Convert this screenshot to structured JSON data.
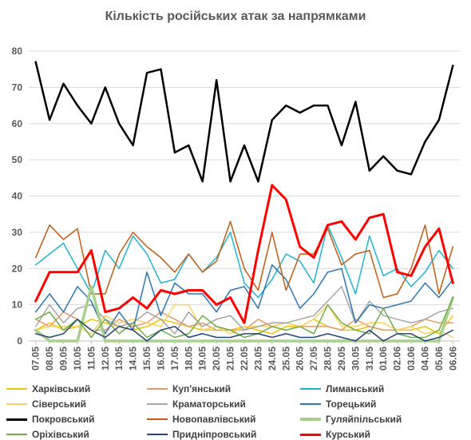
{
  "chart_data": {
    "type": "line",
    "title": "Кількість російських атак за напрямками",
    "xlabel": "",
    "ylabel": "",
    "ylim": [
      0,
      80
    ],
    "yticks": [
      0,
      10,
      20,
      30,
      40,
      50,
      60,
      70,
      80
    ],
    "grid": true,
    "legend_position": "bottom",
    "categories": [
      "07.05",
      "08.05",
      "09.05",
      "10.05",
      "11.05",
      "12.05",
      "13.05",
      "14.05",
      "15.05",
      "16.05",
      "17.05",
      "18.05",
      "19.05",
      "20.05",
      "21.05",
      "22.05",
      "23.05",
      "24.05",
      "25.05",
      "26.05",
      "27.05",
      "28.05",
      "29.05",
      "30.05",
      "31.05",
      "01.06",
      "02.06",
      "03.06",
      "04.06",
      "05.06",
      "06.06"
    ],
    "series": [
      {
        "name": "Харківський",
        "color": "#f2c300",
        "width": 1.5,
        "values": [
          3,
          5,
          3,
          4,
          6,
          5,
          4,
          3,
          4,
          6,
          5,
          4,
          3,
          3,
          3,
          4,
          3,
          2,
          4,
          4,
          6,
          4,
          3,
          3,
          4,
          3,
          3,
          3,
          4,
          2,
          7
        ]
      },
      {
        "name": "Куп'янський",
        "color": "#e59a68",
        "width": 1.5,
        "values": [
          6,
          4,
          8,
          6,
          3,
          3,
          6,
          4,
          5,
          8,
          6,
          4,
          5,
          3,
          3,
          3,
          6,
          4,
          5,
          4,
          4,
          4,
          3,
          6,
          4,
          3,
          3,
          4,
          6,
          5,
          5
        ]
      },
      {
        "name": "Лиманський",
        "color": "#1fb4d4",
        "width": 1.5,
        "values": [
          21,
          24,
          27,
          20,
          13,
          25,
          20,
          29,
          24,
          16,
          17,
          24,
          19,
          23,
          30,
          16,
          12,
          17,
          24,
          22,
          16,
          32,
          23,
          13,
          29,
          18,
          20,
          15,
          19,
          25,
          20
        ]
      },
      {
        "name": "Сіверський",
        "color": "#fbd25e",
        "width": 1.5,
        "values": [
          3,
          4,
          4,
          4,
          2,
          7,
          5,
          6,
          5,
          4,
          10,
          10,
          3,
          4,
          2,
          4,
          4,
          4,
          5,
          4,
          6,
          10,
          4,
          4,
          5,
          5,
          3,
          4,
          2,
          3,
          1
        ]
      },
      {
        "name": "Краматорський",
        "color": "#a5a5a5",
        "width": 1.5,
        "values": [
          4,
          10,
          5,
          9,
          10,
          6,
          4,
          5,
          8,
          6,
          2,
          8,
          4,
          6,
          7,
          3,
          4,
          5,
          5,
          6,
          7,
          11,
          15,
          5,
          11,
          7,
          6,
          5,
          6,
          8,
          9
        ]
      },
      {
        "name": "Торецький",
        "color": "#2e75b6",
        "width": 1.5,
        "values": [
          8,
          13,
          8,
          15,
          11,
          2,
          8,
          3,
          19,
          7,
          16,
          13,
          13,
          8,
          14,
          15,
          9,
          21,
          17,
          9,
          13,
          19,
          20,
          5,
          10,
          9,
          10,
          11,
          16,
          12,
          17
        ]
      },
      {
        "name": "Покровський",
        "color": "#000000",
        "width": 2.5,
        "values": [
          77,
          61,
          71,
          65,
          60,
          70,
          60,
          54,
          74,
          75,
          52,
          54,
          44,
          72,
          44,
          54,
          44,
          61,
          65,
          63,
          65,
          65,
          54,
          66,
          47,
          51,
          47,
          46,
          55,
          61,
          76
        ]
      },
      {
        "name": "Новопавлівський",
        "color": "#c55a11",
        "width": 1.5,
        "values": [
          23,
          32,
          28,
          31,
          13,
          13,
          24,
          30,
          26,
          23,
          19,
          24,
          19,
          22,
          33,
          20,
          14,
          30,
          14,
          24,
          24,
          31,
          21,
          24,
          25,
          12,
          13,
          20,
          32,
          13,
          26
        ]
      },
      {
        "name": "Гуляйпільський",
        "color": "#a9d18e",
        "width": 3.5,
        "values": [
          3,
          0,
          0,
          0,
          15,
          0,
          0,
          0,
          0,
          0,
          0,
          0,
          0,
          0,
          0,
          0,
          0,
          0,
          0,
          0,
          0,
          0,
          0,
          0,
          0,
          0,
          0,
          0,
          0,
          0,
          12
        ]
      },
      {
        "name": "Оріхівський",
        "color": "#70ad47",
        "width": 1.5,
        "values": [
          6,
          8,
          3,
          6,
          1,
          6,
          2,
          5,
          1,
          3,
          1,
          2,
          7,
          4,
          3,
          1,
          2,
          4,
          3,
          4,
          2,
          10,
          5,
          3,
          2,
          9,
          2,
          1,
          1,
          3,
          12
        ]
      },
      {
        "name": "Придніпровський",
        "color": "#264478",
        "width": 1.5,
        "values": [
          2,
          1,
          2,
          6,
          3,
          1,
          4,
          3,
          0,
          3,
          4,
          1,
          2,
          1,
          1,
          2,
          2,
          1,
          2,
          1,
          1,
          2,
          1,
          0,
          3,
          0,
          2,
          2,
          0,
          1,
          3
        ]
      },
      {
        "name": "Курський",
        "color": "#ff0000",
        "width": 3,
        "values": [
          11,
          19,
          19,
          19,
          25,
          8,
          9,
          12,
          9,
          14,
          13,
          14,
          14,
          10,
          12,
          5,
          25,
          43,
          39,
          26,
          23,
          32,
          33,
          28,
          34,
          35,
          19,
          18,
          26,
          31,
          16
        ]
      }
    ]
  }
}
